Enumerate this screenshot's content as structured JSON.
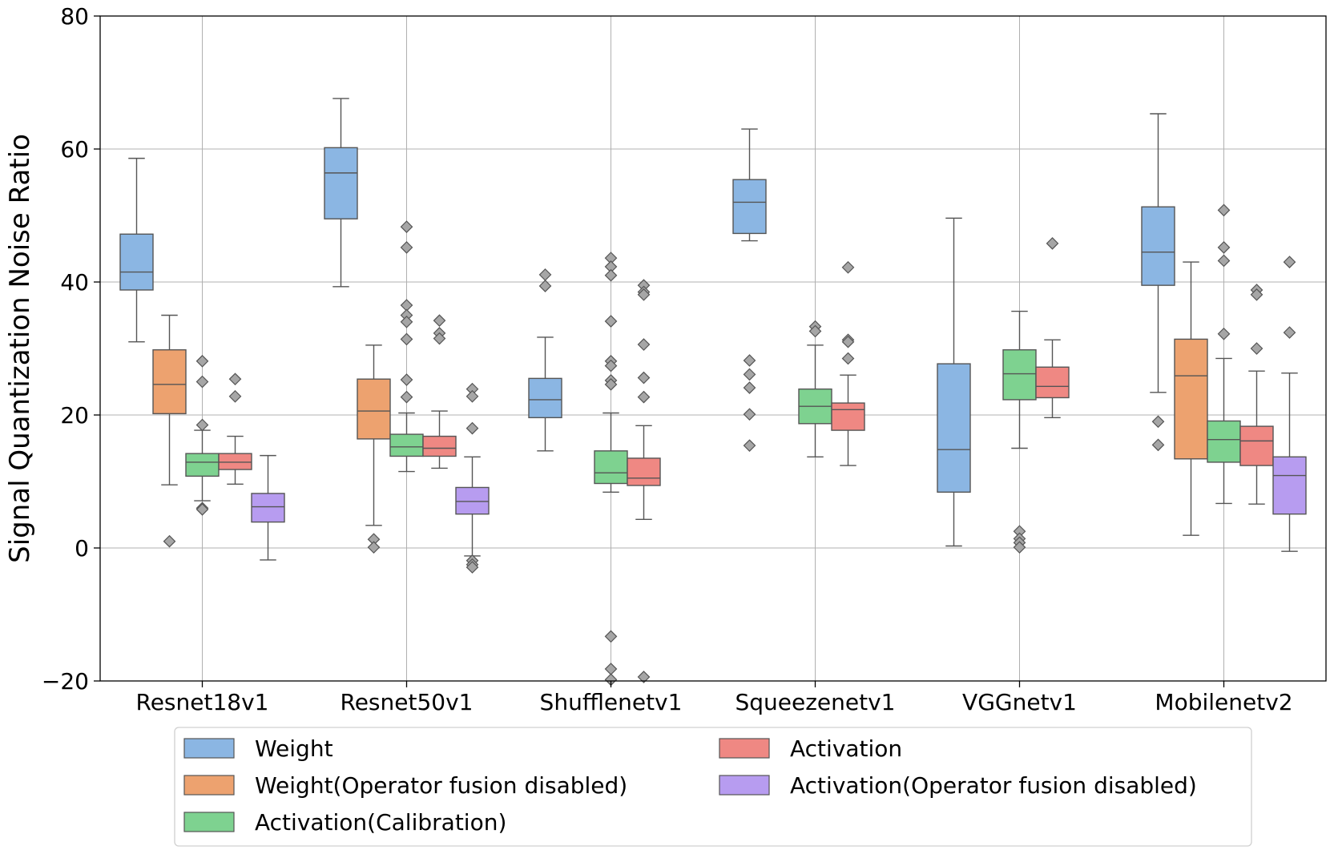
{
  "chart_data": {
    "type": "box",
    "title": "",
    "xlabel": "",
    "ylabel": "Signal Quantization Noise Ratio",
    "ylim": [
      -20,
      80
    ],
    "yticks": [
      -20,
      0,
      20,
      40,
      60,
      80
    ],
    "ytick_labels": [
      "−20",
      "0",
      "20",
      "40",
      "60",
      "80"
    ],
    "grid": true,
    "legend_position": "bottom-center",
    "categories": [
      "Resnet18v1",
      "Resnet50v1",
      "Shufflenetv1",
      "Squeezenetv1",
      "VGGnetv1",
      "Mobilenetv2"
    ],
    "series": [
      {
        "name": "Weight",
        "color": "#8bb6e3",
        "boxes": [
          {
            "category": "Resnet18v1",
            "whisker_low": 31.0,
            "q1": 38.8,
            "median": 41.5,
            "q3": 47.2,
            "whisker_high": 58.6,
            "outliers": []
          },
          {
            "category": "Resnet50v1",
            "whisker_low": 39.3,
            "q1": 49.5,
            "median": 56.4,
            "q3": 60.2,
            "whisker_high": 67.6,
            "outliers": []
          },
          {
            "category": "Shufflenetv1",
            "whisker_low": 14.6,
            "q1": 19.6,
            "median": 22.3,
            "q3": 25.5,
            "whisker_high": 31.7,
            "outliers": [
              39.4,
              41.1
            ]
          },
          {
            "category": "Squeezenetv1",
            "whisker_low": 46.2,
            "q1": 47.3,
            "median": 52.0,
            "q3": 55.4,
            "whisker_high": 63.0,
            "outliers": [
              28.2,
              26.1,
              24.1,
              20.1,
              15.4
            ]
          },
          {
            "category": "VGGnetv1",
            "whisker_low": 0.3,
            "q1": 8.4,
            "median": 14.8,
            "q3": 27.7,
            "whisker_high": 49.6,
            "outliers": []
          },
          {
            "category": "Mobilenetv2",
            "whisker_low": 23.4,
            "q1": 39.5,
            "median": 44.5,
            "q3": 51.3,
            "whisker_high": 65.3,
            "outliers": [
              19.0,
              15.5
            ]
          }
        ]
      },
      {
        "name": "Weight(Operator fusion disabled)",
        "color": "#eda26f",
        "boxes": [
          {
            "category": "Resnet18v1",
            "whisker_low": 9.5,
            "q1": 20.2,
            "median": 24.6,
            "q3": 29.8,
            "whisker_high": 35.0,
            "outliers": [
              1.0
            ]
          },
          {
            "category": "Resnet50v1",
            "whisker_low": 3.4,
            "q1": 16.4,
            "median": 20.6,
            "q3": 25.4,
            "whisker_high": 30.5,
            "outliers": [
              1.3,
              0.1
            ]
          },
          {
            "category": "Mobilenetv2",
            "whisker_low": 1.9,
            "q1": 13.4,
            "median": 25.9,
            "q3": 31.4,
            "whisker_high": 43.0,
            "outliers": []
          }
        ]
      },
      {
        "name": "Activation(Calibration)",
        "color": "#7ed290",
        "boxes": [
          {
            "category": "Resnet18v1",
            "whisker_low": 7.1,
            "q1": 10.8,
            "median": 12.9,
            "q3": 14.2,
            "whisker_high": 17.7,
            "outliers": [
              28.1,
              25.0,
              18.5,
              6.0,
              5.8
            ]
          },
          {
            "category": "Resnet50v1",
            "whisker_low": 11.5,
            "q1": 13.8,
            "median": 15.2,
            "q3": 17.1,
            "whisker_high": 20.3,
            "outliers": [
              48.3,
              45.2,
              36.5,
              35.0,
              34.0,
              31.4,
              25.3,
              22.7
            ]
          },
          {
            "category": "Shufflenetv1",
            "whisker_low": 8.4,
            "q1": 9.7,
            "median": 11.3,
            "q3": 14.6,
            "whisker_high": 20.3,
            "outliers": [
              43.6,
              42.3,
              41.0,
              34.1,
              28.1,
              27.4,
              25.2,
              24.6,
              -13.3,
              -18.2,
              -19.8
            ]
          },
          {
            "category": "Squeezenetv1",
            "whisker_low": 13.7,
            "q1": 18.7,
            "median": 21.3,
            "q3": 23.9,
            "whisker_high": 30.5,
            "outliers": [
              33.3,
              32.6
            ]
          },
          {
            "category": "VGGnetv1",
            "whisker_low": 15.0,
            "q1": 22.3,
            "median": 26.2,
            "q3": 29.8,
            "whisker_high": 35.6,
            "outliers": [
              2.5,
              1.4,
              0.8,
              0.1
            ]
          },
          {
            "category": "Mobilenetv2",
            "whisker_low": 6.7,
            "q1": 12.9,
            "median": 16.3,
            "q3": 19.1,
            "whisker_high": 28.5,
            "outliers": [
              50.8,
              45.2,
              43.2,
              32.2
            ]
          }
        ]
      },
      {
        "name": "Activation",
        "color": "#ef8883",
        "boxes": [
          {
            "category": "Resnet18v1",
            "whisker_low": 9.6,
            "q1": 11.8,
            "median": 12.9,
            "q3": 14.2,
            "whisker_high": 16.8,
            "outliers": [
              25.4,
              22.8
            ]
          },
          {
            "category": "Resnet50v1",
            "whisker_low": 12.0,
            "q1": 13.8,
            "median": 15.0,
            "q3": 16.8,
            "whisker_high": 20.6,
            "outliers": [
              34.2,
              32.3,
              31.5
            ]
          },
          {
            "category": "Shufflenetv1",
            "whisker_low": 4.3,
            "q1": 9.4,
            "median": 10.5,
            "q3": 13.5,
            "whisker_high": 18.4,
            "outliers": [
              39.5,
              38.5,
              38.1,
              30.6,
              25.6,
              22.7,
              -19.4
            ]
          },
          {
            "category": "Squeezenetv1",
            "whisker_low": 12.4,
            "q1": 17.7,
            "median": 20.8,
            "q3": 21.8,
            "whisker_high": 26.0,
            "outliers": [
              42.2,
              31.3,
              31.0,
              28.5
            ]
          },
          {
            "category": "VGGnetv1",
            "whisker_low": 19.6,
            "q1": 22.6,
            "median": 24.3,
            "q3": 27.2,
            "whisker_high": 31.3,
            "outliers": [
              45.8
            ]
          },
          {
            "category": "Mobilenetv2",
            "whisker_low": 6.6,
            "q1": 12.4,
            "median": 16.1,
            "q3": 18.3,
            "whisker_high": 26.6,
            "outliers": [
              38.8,
              38.1,
              30.0
            ]
          }
        ]
      },
      {
        "name": "Activation(Operator fusion disabled)",
        "color": "#b79cf0",
        "boxes": [
          {
            "category": "Resnet18v1",
            "whisker_low": -1.8,
            "q1": 3.9,
            "median": 6.2,
            "q3": 8.2,
            "whisker_high": 13.9,
            "outliers": []
          },
          {
            "category": "Resnet50v1",
            "whisker_low": -1.2,
            "q1": 5.1,
            "median": 7.0,
            "q3": 9.1,
            "whisker_high": 13.7,
            "outliers": [
              23.9,
              22.8,
              18.0,
              -1.9,
              -2.5,
              -2.9
            ]
          },
          {
            "category": "Mobilenetv2",
            "whisker_low": -0.5,
            "q1": 5.1,
            "median": 10.9,
            "q3": 13.7,
            "whisker_high": 26.3,
            "outliers": [
              43.0,
              32.4
            ]
          }
        ]
      }
    ],
    "legend": {
      "entries": [
        "Weight",
        "Weight(Operator fusion disabled)",
        "Activation(Calibration)",
        "Activation",
        "Activation(Operator fusion disabled)"
      ]
    }
  }
}
